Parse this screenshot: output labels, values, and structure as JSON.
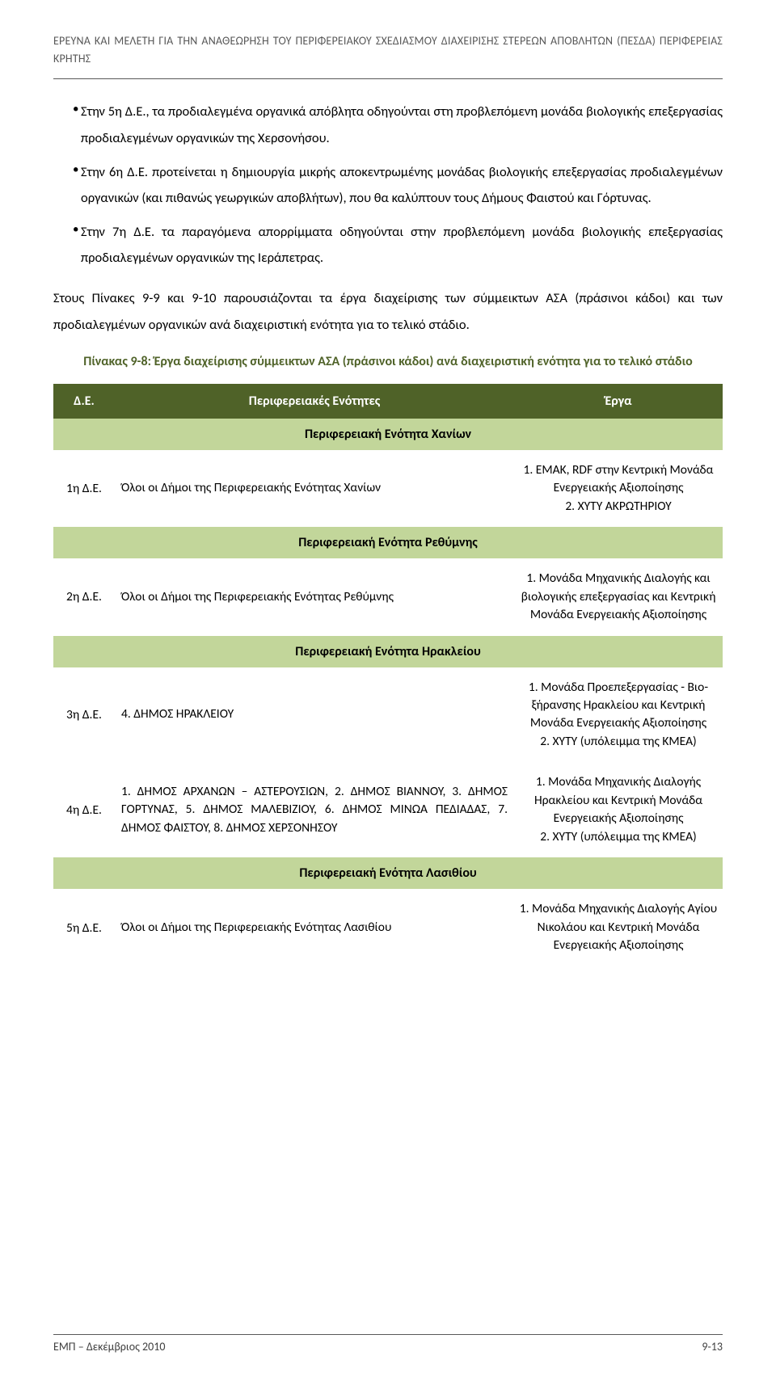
{
  "header": {
    "line1": "ΕΡΕΥΝΑ ΚΑΙ ΜΕΛΕΤΗ ΓΙΑ ΤΗΝ ΑΝΑΘΕΩΡΗΣΗ ΤΟΥ ΠΕΡΙΦΕΡΕΙΑΚΟΥ ΣΧΕΔΙΑΣΜΟΥ ΔΙΑΧΕΙΡΙΣΗΣ ΣΤΕΡΕΩΝ ΑΠΟΒΛΗΤΩΝ (ΠΕΣΔΑ) ΠΕΡΙΦΕΡΕΙΑΣ ΚΡΗΤΗΣ"
  },
  "bullets": {
    "b1": "Στην 5η Δ.Ε., τα προδιαλεγμένα οργανικά απόβλητα οδηγούνται στη προβλεπόμενη μονάδα βιολογικής επεξεργασίας προδιαλεγμένων οργανικών της Χερσονήσου.",
    "b2": "Στην 6η Δ.Ε. προτείνεται η δημιουργία μικρής αποκεντρωμένης μονάδας βιολογικής επεξεργασίας προδιαλεγμένων οργανικών (και πιθανώς γεωργικών αποβλήτων), που θα καλύπτουν τους Δήμους Φαιστού και Γόρτυνας.",
    "b3": "Στην 7η Δ.Ε. τα παραγόμενα απορρίμματα οδηγούνται στην προβλεπόμενη μονάδα βιολογικής επεξεργασίας προδιαλεγμένων οργανικών της Ιεράπετρας."
  },
  "para1": "Στους Πίνακες 9-9 και 9-10 παρουσιάζονται τα έργα διαχείρισης των σύμμεικτων ΑΣΑ (πράσινοι κάδοι) και των προδιαλεγμένων οργανικών  ανά διαχειριστική ενότητα για το τελικό στάδιο.",
  "table": {
    "caption": "Πίνακας 9-8: Έργα διαχείρισης σύμμεικτων ΑΣΑ (πράσινοι κάδοι) ανά διαχειριστική ενότητα για το τελικό στάδιο",
    "head": {
      "c0": "Δ.Ε.",
      "c1": "Περιφερειακές Ενότητες",
      "c2": "Έργα"
    },
    "sections": [
      {
        "title": "Περιφερειακή Ενότητα Χανίων",
        "rows": [
          {
            "c0": "1η Δ.Ε.",
            "c1": "Όλοι οι Δήμοι της Περιφερειακής Ενότητας Χανίων",
            "c2": "1. ΕΜΑΚ, RDF στην Κεντρική Μονάδα Ενεργειακής Αξιοποίησης\n2. ΧΥΤΥ ΑΚΡΩΤΗΡΙΟΥ"
          }
        ]
      },
      {
        "title": "Περιφερειακή Ενότητα Ρεθύμνης",
        "rows": [
          {
            "c0": "2η Δ.Ε.",
            "c1": "Όλοι οι Δήμοι της Περιφερειακής Ενότητας Ρεθύμνης",
            "c2": "1. Μονάδα Μηχανικής Διαλογής και βιολογικής επεξεργασίας και Κεντρική Μονάδα Ενεργειακής Αξιοποίησης"
          }
        ]
      },
      {
        "title": "Περιφερειακή Ενότητα Ηρακλείου",
        "rows": [
          {
            "c0": "3η Δ.Ε.",
            "c1": "4. ΔΗΜΟΣ ΗΡΑΚΛΕΙΟΥ",
            "c2": "1. Μονάδα Προεπεξεργασίας - Βιο-ξήρανσης Ηρακλείου και Κεντρική Μονάδα Ενεργειακής Αξιοποίησης\n2. ΧΥΤΥ (υπόλειμμα της ΚΜΕΑ)"
          },
          {
            "c0": "4η Δ.Ε.",
            "c1": "1. ΔΗΜΟΣ ΑΡΧΑΝΩΝ – ΑΣΤΕΡΟΥΣΙΩΝ, 2. ΔΗΜΟΣ ΒΙΑΝΝΟΥ, 3. ΔΗΜΟΣ ΓΟΡΤΥΝΑΣ, 5. ΔΗΜΟΣ ΜΑΛΕΒΙΖΙΟΥ, 6. ΔΗΜΟΣ ΜΙΝΩΑ ΠΕΔΙΑΔΑΣ, 7. ΔΗΜΟΣ ΦΑΙΣΤΟΥ, 8. ΔΗΜΟΣ ΧΕΡΣΟΝΗΣΟΥ",
            "c2": "1. Μονάδα Μηχανικής Διαλογής Ηρακλείου και  Κεντρική Μονάδα Ενεργειακής Αξιοποίησης\n2. ΧΥΤΥ (υπόλειμμα της ΚΜΕΑ)"
          }
        ]
      },
      {
        "title": "Περιφερειακή Ενότητα Λασιθίου",
        "rows": [
          {
            "c0": "5η Δ.Ε.",
            "c1": "Όλοι οι Δήμοι της Περιφερειακής Ενότητας Λασιθίου",
            "c2": "1. Μονάδα Μηχανικής Διαλογής Αγίου Νικολάου και Κεντρική Μονάδα Ενεργειακής Αξιοποίησης"
          }
        ]
      }
    ]
  },
  "footer": {
    "left": "ΕΜΠ – Δεκέμβριος 2010",
    "right": "9-13"
  }
}
